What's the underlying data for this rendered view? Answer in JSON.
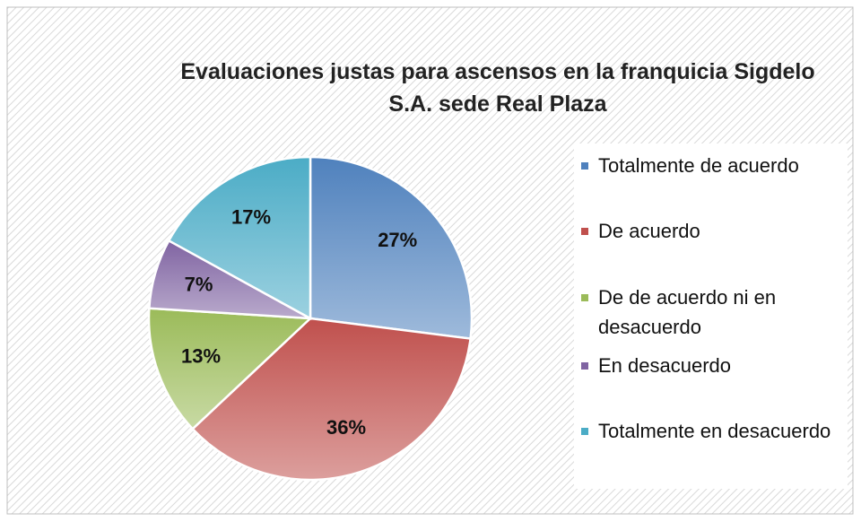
{
  "chart_data": {
    "type": "pie",
    "title": "Evaluaciones justas para ascensos en la franquicia Sigdelo S.A. sede Real Plaza",
    "categories": [
      "Totalmente de acuerdo",
      "De acuerdo",
      "De de acuerdo ni en desacuerdo",
      "En desacuerdo",
      "Totalmente en desacuerdo"
    ],
    "values": [
      27,
      36,
      13,
      7,
      17
    ],
    "value_labels": [
      "27%",
      "36%",
      "13%",
      "7%",
      "17%"
    ],
    "colors": [
      "#4f81bd",
      "#c0504d",
      "#9bbb59",
      "#8064a2",
      "#4bacc6"
    ],
    "legend": "right"
  }
}
